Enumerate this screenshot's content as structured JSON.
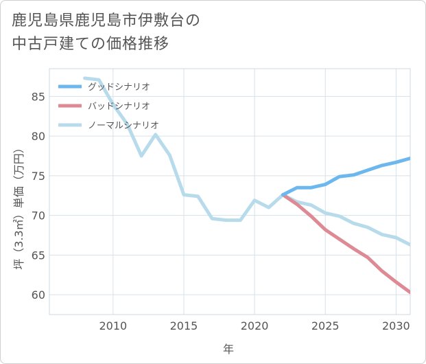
{
  "title": {
    "line1": "鹿児島県鹿児島市伊敷台の",
    "line2": "中古戸建ての価格推移"
  },
  "chart_data": {
    "type": "line",
    "title": "鹿児島県鹿児島市伊敷台の中古戸建ての価格推移",
    "xlabel": "年",
    "ylabel": "坪（3.3㎡）単価（万円）",
    "xlim": [
      2005.5,
      2031
    ],
    "ylim": [
      57.5,
      88.5
    ],
    "x_ticks": [
      2010,
      2015,
      2020,
      2025,
      2030
    ],
    "y_ticks": [
      60,
      65,
      70,
      75,
      80,
      85
    ],
    "grid": true,
    "legend_position": "top-left",
    "series": [
      {
        "name": "グッドシナリオ",
        "color": "#6cb8ee",
        "x": [
          2022,
          2023,
          2024,
          2025,
          2026,
          2027,
          2028,
          2029,
          2030,
          2031
        ],
        "values": [
          72.6,
          73.5,
          73.5,
          73.9,
          74.9,
          75.1,
          75.7,
          76.3,
          76.7,
          77.2
        ]
      },
      {
        "name": "バッドシナリオ",
        "color": "#de8a94",
        "x": [
          2022,
          2023,
          2024,
          2025,
          2026,
          2027,
          2028,
          2029,
          2030,
          2031
        ],
        "values": [
          72.6,
          71.4,
          69.9,
          68.2,
          67.0,
          65.8,
          64.7,
          63.0,
          61.6,
          60.3
        ]
      },
      {
        "name": "ノーマルシナリオ",
        "color": "#b8dbec",
        "x": [
          2008,
          2009,
          2010,
          2011,
          2012,
          2013,
          2014,
          2015,
          2016,
          2017,
          2018,
          2019,
          2020,
          2021,
          2022,
          2023,
          2024,
          2025,
          2026,
          2027,
          2028,
          2029,
          2030,
          2031
        ],
        "values": [
          87.3,
          87.1,
          84.0,
          81.5,
          77.5,
          80.2,
          77.6,
          72.6,
          72.4,
          69.6,
          69.4,
          69.4,
          71.9,
          71.0,
          72.6,
          71.7,
          71.3,
          70.3,
          69.9,
          69.0,
          68.5,
          67.6,
          67.2,
          66.3
        ]
      }
    ]
  }
}
